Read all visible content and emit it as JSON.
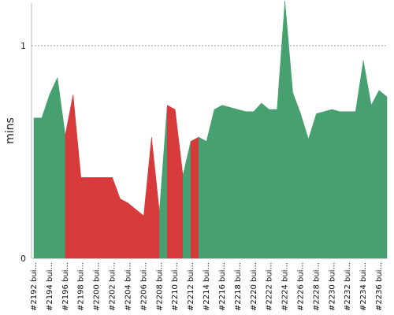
{
  "chart_data": {
    "type": "area",
    "title": "",
    "xlabel": "",
    "ylabel": "mins",
    "ylim": [
      0,
      1.2
    ],
    "y_ticks": [
      0,
      1
    ],
    "y_tick_labels": [
      "0",
      "1"
    ],
    "grid": {
      "y_dashed_at": [
        1
      ]
    },
    "x": [
      2192,
      2193,
      2194,
      2195,
      2196,
      2197,
      2198,
      2199,
      2200,
      2201,
      2202,
      2203,
      2204,
      2205,
      2206,
      2207,
      2208,
      2209,
      2210,
      2211,
      2212,
      2213,
      2214,
      2215,
      2216,
      2217,
      2218,
      2219,
      2220,
      2221,
      2222,
      2223,
      2224,
      2225,
      2226,
      2227,
      2228,
      2229,
      2230,
      2231,
      2232,
      2233,
      2234,
      2235,
      2236,
      2237
    ],
    "tick_labels": [
      "#2192 bui...",
      "#2194 bui...",
      "#2196 bui...",
      "#2198 bui...",
      "#2200 bui...",
      "#2202 bui...",
      "#2204 bui...",
      "#2206 bui...",
      "#2208 bui...",
      "#2210 bui...",
      "#2212 bui...",
      "#2214 bui...",
      "#2216 bui...",
      "#2218 bui...",
      "#2220 bui...",
      "#2222 bui...",
      "#2224 bui...",
      "#2226 bui...",
      "#2228 bui...",
      "#2230 bui...",
      "#2232 bui...",
      "#2234 bui...",
      "#2236 bui..."
    ],
    "values": [
      0.66,
      0.66,
      0.77,
      0.85,
      0.58,
      0.77,
      0.38,
      0.38,
      0.38,
      0.38,
      0.38,
      0.28,
      0.26,
      0.23,
      0.2,
      0.57,
      0.22,
      0.72,
      0.7,
      0.39,
      0.55,
      0.57,
      0.55,
      0.7,
      0.72,
      0.71,
      0.7,
      0.69,
      0.69,
      0.73,
      0.7,
      0.7,
      1.21,
      0.78,
      0.68,
      0.56,
      0.68,
      0.69,
      0.7,
      0.69,
      0.69,
      0.69,
      0.93,
      0.72,
      0.79,
      0.76
    ],
    "status": [
      "success",
      "success",
      "success",
      "success",
      "success",
      "failure",
      "failure",
      "failure",
      "failure",
      "failure",
      "failure",
      "failure",
      "failure",
      "failure",
      "failure",
      "failure",
      "failure",
      "success",
      "failure",
      "failure",
      "success",
      "failure",
      "success",
      "success",
      "success",
      "success",
      "success",
      "success",
      "success",
      "success",
      "success",
      "success",
      "success",
      "success",
      "success",
      "success",
      "success",
      "success",
      "success",
      "success",
      "success",
      "success",
      "success",
      "success",
      "success",
      "success"
    ],
    "colors": {
      "success": "#46a06f",
      "failure": "#d73a3a"
    }
  }
}
